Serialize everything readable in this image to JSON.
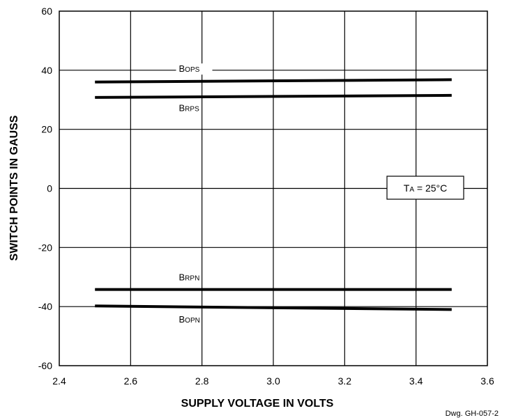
{
  "chart_data": {
    "type": "line",
    "title": "",
    "xlabel": "SUPPLY VOLTAGE IN VOLTS",
    "ylabel": "SWITCH POINTS IN GAUSS",
    "xlim": [
      2.4,
      3.6
    ],
    "ylim": [
      -60,
      60
    ],
    "x_ticks": [
      "2.4",
      "2.6",
      "2.8",
      "3.0",
      "3.2",
      "3.4",
      "3.6"
    ],
    "y_ticks": [
      "60",
      "40",
      "20",
      "0",
      "-20",
      "-40",
      "-60"
    ],
    "grid": true,
    "series": [
      {
        "name_main": "B",
        "name_sub": "OPS",
        "x": [
          2.5,
          3.5
        ],
        "y": [
          36.0,
          36.8
        ]
      },
      {
        "name_main": "B",
        "name_sub": "RPS",
        "x": [
          2.5,
          3.5
        ],
        "y": [
          30.8,
          31.5
        ]
      },
      {
        "name_main": "B",
        "name_sub": "RPN",
        "x": [
          2.5,
          3.5
        ],
        "y": [
          -34.2,
          -34.2
        ]
      },
      {
        "name_main": "B",
        "name_sub": "OPN",
        "x": [
          2.5,
          3.5
        ],
        "y": [
          -39.8,
          -41.0
        ]
      }
    ],
    "annotation": {
      "main": "T",
      "sub": "A",
      "rest": " = 25°C"
    },
    "drawing_number": "Dwg. GH-057-2"
  }
}
